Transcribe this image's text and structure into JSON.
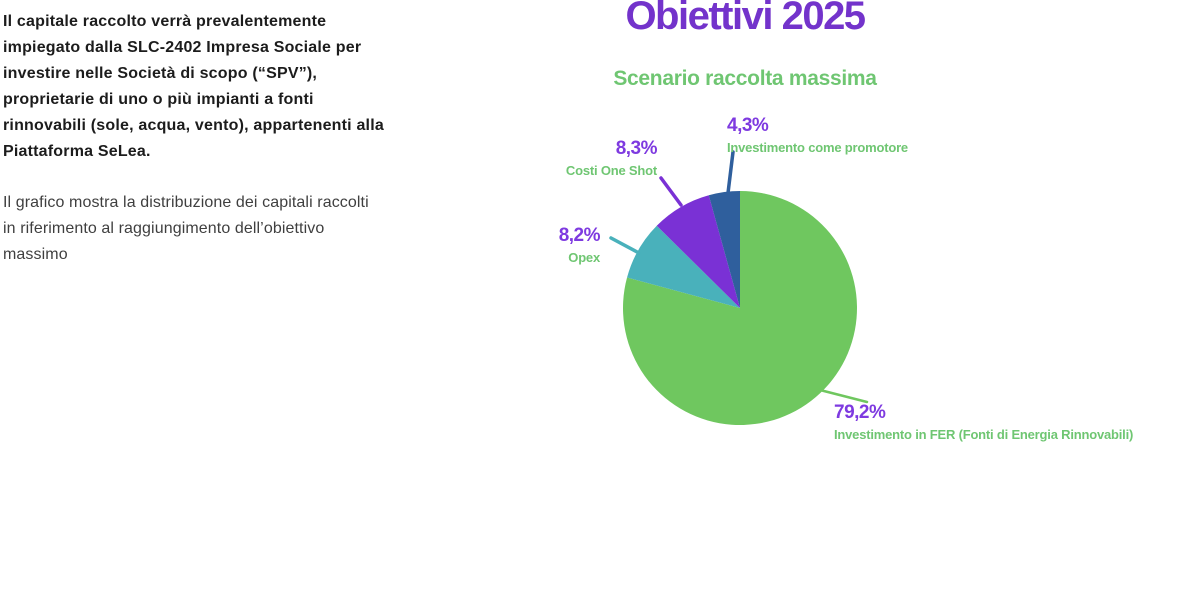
{
  "theme": {
    "title_color": "#7333cb",
    "subtitle_color": "#6fc672",
    "pct_color": "#7e3ae0",
    "label_color": "#6fc672",
    "text_bold_color": "#1c1c1c",
    "text_regular_color": "#3f3f3f",
    "background": "#ffffff"
  },
  "intro": {
    "bold": "Il capitale raccolto verrà prevalentemente\nimpiegato dalla SLC-2402 Impresa Sociale per\ninvestire nelle Società di scopo (“SPV”),\nproprietarie di uno o più impianti a fonti\nrinnovabili (sole, acqua, vento), appartenenti alla\nPiattaforma SeLea.",
    "regular": "Il grafico mostra la distribuzione dei capitali raccolti\nin riferimento al raggiungimento dell’obiettivo\nmassimo"
  },
  "chart_data": {
    "type": "pie",
    "title": "Obiettivi 2025",
    "subtitle": "Scenario raccolta massima",
    "unit": "%",
    "start_angle_deg": 0,
    "direction": "clockwise",
    "legend_position": "callout-labels",
    "slices": [
      {
        "id": "fer",
        "label": "Investimento in FER (Fonti di Energia Rinnovabili)",
        "value": 79.2,
        "pct_label": "79,2%",
        "color": "#6fc75f"
      },
      {
        "id": "opex",
        "label": "Opex",
        "value": 8.2,
        "pct_label": "8,2%",
        "color": "#49b1bb"
      },
      {
        "id": "costi-one-shot",
        "label": "Costi One Shot",
        "value": 8.3,
        "pct_label": "8,3%",
        "color": "#7a31d5"
      },
      {
        "id": "promotore",
        "label": "Investimento come promotore",
        "value": 4.3,
        "pct_label": "4,3%",
        "color": "#2f5f9d"
      }
    ]
  }
}
